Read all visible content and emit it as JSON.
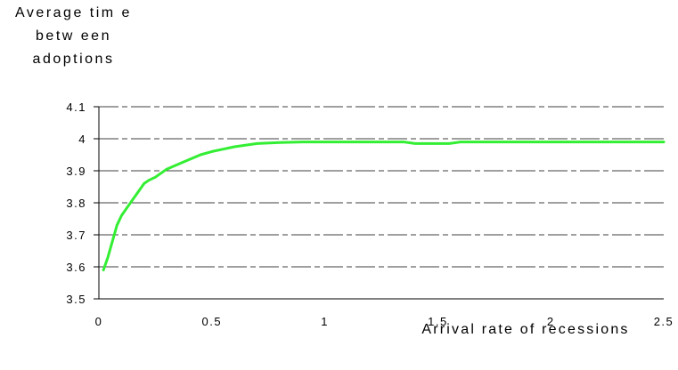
{
  "chart_data": {
    "type": "line",
    "ylabel_lines": [
      "Average tim e",
      "betw een",
      "adoptions"
    ],
    "xlabel": "Arrival rate of recessions",
    "xlim": [
      0,
      2.5
    ],
    "ylim": [
      3.5,
      4.1
    ],
    "x_ticks": [
      "0",
      "0.5",
      "1",
      "1.5",
      "2",
      "2.5"
    ],
    "y_ticks": [
      "3.5",
      "3.6",
      "3.7",
      "3.8",
      "3.9",
      "4",
      "4.1"
    ],
    "grid": "horizontal dashed",
    "series": [
      {
        "color": "#33ee33",
        "x": [
          0.02,
          0.04,
          0.06,
          0.08,
          0.1,
          0.12,
          0.15,
          0.18,
          0.2,
          0.22,
          0.25,
          0.3,
          0.35,
          0.4,
          0.45,
          0.5,
          0.6,
          0.7,
          0.8,
          0.9,
          1.0,
          1.1,
          1.2,
          1.3,
          1.35,
          1.4,
          1.5,
          1.55,
          1.6,
          1.7,
          1.8,
          1.9,
          2.0,
          2.1,
          2.2,
          2.3,
          2.4,
          2.5
        ],
        "y": [
          3.59,
          3.63,
          3.68,
          3.73,
          3.76,
          3.78,
          3.81,
          3.84,
          3.86,
          3.87,
          3.88,
          3.905,
          3.92,
          3.935,
          3.95,
          3.96,
          3.975,
          3.985,
          3.988,
          3.99,
          3.99,
          3.99,
          3.99,
          3.99,
          3.99,
          3.985,
          3.985,
          3.985,
          3.99,
          3.99,
          3.99,
          3.99,
          3.99,
          3.99,
          3.99,
          3.99,
          3.99,
          3.99
        ]
      }
    ]
  }
}
